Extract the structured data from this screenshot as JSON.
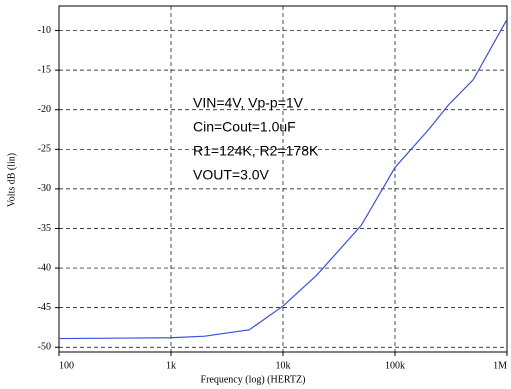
{
  "chart_data": {
    "type": "line",
    "x_log": true,
    "xlabel": "Frequency (log) (HERTZ)",
    "ylabel": "Volts dB (lin)",
    "annotations": [
      "VIN=4V, Vp-p=1V",
      "Cin=Cout=1.0uF",
      "R1=124K, R2=178K",
      "VOUT=3.0V"
    ],
    "x": [
      100,
      1000,
      2000,
      5000,
      10000,
      20000,
      50000,
      100000,
      200000,
      300000,
      500000,
      1000000
    ],
    "series": [
      {
        "color": "#3a4fe0",
        "values": [
          -48.9,
          -48.8,
          -48.6,
          -47.8,
          -44.8,
          -40.9,
          -34.6,
          -27.3,
          -22.5,
          -19.4,
          -16.2,
          -8.6
        ]
      }
    ],
    "xlim": [
      100,
      1000000
    ],
    "xticks": [
      {
        "value": 100,
        "label": "100"
      },
      {
        "value": 1000,
        "label": "1k"
      },
      {
        "value": 10000,
        "label": "10k"
      },
      {
        "value": 100000,
        "label": "100k"
      },
      {
        "value": 1000000,
        "label": "1M"
      }
    ],
    "ylim": [
      -50.6,
      -6.9
    ],
    "yticks": [
      -10,
      -15,
      -20,
      -25,
      -30,
      -35,
      -40,
      -45,
      -50
    ],
    "grid": true
  }
}
